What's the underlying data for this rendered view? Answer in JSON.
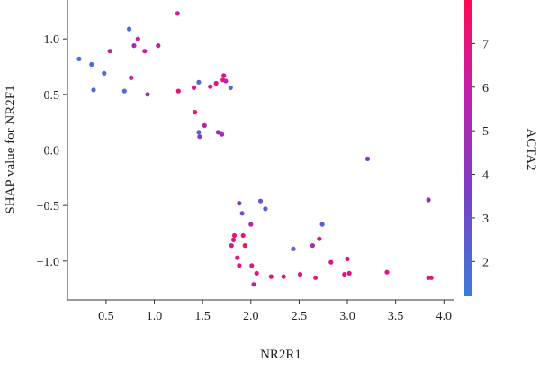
{
  "chart_data": {
    "type": "scatter",
    "xlabel": "NR2R1",
    "ylabel": "SHAP value for NR2F1",
    "colorbar_label": "ACTA2",
    "xlim": [
      0.1,
      4.1
    ],
    "ylim": [
      -1.35,
      1.35
    ],
    "xticks": [
      0.5,
      1.0,
      1.5,
      2.0,
      2.5,
      3.0,
      3.5,
      4.0
    ],
    "xtick_labels": [
      "0.5",
      "1.0",
      "1.5",
      "2.0",
      "2.5",
      "3.0",
      "3.5",
      "4.0"
    ],
    "yticks": [
      1.0,
      0.5,
      0.0,
      -0.5,
      -1.0
    ],
    "ytick_labels": [
      "1.0",
      "0.5",
      "0.0",
      "−0.5",
      "−1.0"
    ],
    "colorbar": {
      "range": [
        1.2,
        8.0
      ],
      "ticks": [
        2,
        3,
        4,
        5,
        6,
        7
      ],
      "tick_labels": [
        "2",
        "3",
        "4",
        "5",
        "6",
        "7"
      ],
      "colors": [
        "#3b7dd8",
        "#7b3fc4",
        "#c420a8",
        "#ff0a52"
      ]
    },
    "points": [
      {
        "x": 0.22,
        "y": 0.82,
        "c": 1.5
      },
      {
        "x": 0.35,
        "y": 0.77,
        "c": 1.8
      },
      {
        "x": 0.37,
        "y": 0.54,
        "c": 1.9
      },
      {
        "x": 0.48,
        "y": 0.69,
        "c": 1.7
      },
      {
        "x": 0.54,
        "y": 0.89,
        "c": 5.5
      },
      {
        "x": 0.69,
        "y": 0.53,
        "c": 1.8
      },
      {
        "x": 0.74,
        "y": 1.09,
        "c": 2.0
      },
      {
        "x": 0.76,
        "y": 0.65,
        "c": 6.0
      },
      {
        "x": 0.79,
        "y": 0.94,
        "c": 5.5
      },
      {
        "x": 0.83,
        "y": 1.0,
        "c": 6.2
      },
      {
        "x": 0.9,
        "y": 0.89,
        "c": 6.0
      },
      {
        "x": 0.93,
        "y": 0.5,
        "c": 4.5
      },
      {
        "x": 1.04,
        "y": 0.94,
        "c": 5.8
      },
      {
        "x": 1.24,
        "y": 1.23,
        "c": 6.2
      },
      {
        "x": 1.25,
        "y": 0.53,
        "c": 7.2
      },
      {
        "x": 1.41,
        "y": 0.56,
        "c": 6.8
      },
      {
        "x": 1.42,
        "y": 0.34,
        "c": 7.3
      },
      {
        "x": 1.46,
        "y": 0.61,
        "c": 2.1
      },
      {
        "x": 1.46,
        "y": 0.16,
        "c": 2.2
      },
      {
        "x": 1.47,
        "y": 0.12,
        "c": 3.8
      },
      {
        "x": 1.52,
        "y": 0.22,
        "c": 5.0
      },
      {
        "x": 1.58,
        "y": 0.57,
        "c": 6.8
      },
      {
        "x": 1.64,
        "y": 0.6,
        "c": 7.0
      },
      {
        "x": 1.66,
        "y": 0.16,
        "c": 4.5
      },
      {
        "x": 1.69,
        "y": 0.15,
        "c": 4.2
      },
      {
        "x": 1.7,
        "y": 0.14,
        "c": 4.8
      },
      {
        "x": 1.71,
        "y": 0.63,
        "c": 7.0
      },
      {
        "x": 1.72,
        "y": 0.67,
        "c": 7.2
      },
      {
        "x": 1.74,
        "y": 0.62,
        "c": 5.5
      },
      {
        "x": 1.79,
        "y": 0.56,
        "c": 2.2
      },
      {
        "x": 1.8,
        "y": -0.86,
        "c": 6.3
      },
      {
        "x": 1.82,
        "y": -0.81,
        "c": 7.0
      },
      {
        "x": 1.83,
        "y": -0.77,
        "c": 7.3
      },
      {
        "x": 1.86,
        "y": -0.97,
        "c": 7.0
      },
      {
        "x": 1.88,
        "y": -0.48,
        "c": 3.7
      },
      {
        "x": 1.88,
        "y": -1.04,
        "c": 6.5
      },
      {
        "x": 1.91,
        "y": -0.57,
        "c": 2.8
      },
      {
        "x": 1.92,
        "y": -0.77,
        "c": 7.2
      },
      {
        "x": 1.94,
        "y": -0.86,
        "c": 7.3
      },
      {
        "x": 2.0,
        "y": -0.67,
        "c": 5.5
      },
      {
        "x": 2.01,
        "y": -1.04,
        "c": 6.5
      },
      {
        "x": 2.03,
        "y": -1.21,
        "c": 5.8
      },
      {
        "x": 2.06,
        "y": -1.11,
        "c": 7.0
      },
      {
        "x": 2.1,
        "y": -0.46,
        "c": 2.6
      },
      {
        "x": 2.15,
        "y": -0.53,
        "c": 2.2
      },
      {
        "x": 2.21,
        "y": -1.14,
        "c": 7.1
      },
      {
        "x": 2.34,
        "y": -1.14,
        "c": 7.0
      },
      {
        "x": 2.44,
        "y": -0.89,
        "c": 2.2
      },
      {
        "x": 2.51,
        "y": -1.12,
        "c": 6.8
      },
      {
        "x": 2.64,
        "y": -0.86,
        "c": 4.8
      },
      {
        "x": 2.67,
        "y": -1.15,
        "c": 7.0
      },
      {
        "x": 2.71,
        "y": -0.8,
        "c": 7.2
      },
      {
        "x": 2.74,
        "y": -0.67,
        "c": 2.6
      },
      {
        "x": 2.83,
        "y": -1.01,
        "c": 6.5
      },
      {
        "x": 2.97,
        "y": -1.12,
        "c": 7.0
      },
      {
        "x": 3.0,
        "y": -0.98,
        "c": 6.8
      },
      {
        "x": 3.02,
        "y": -1.11,
        "c": 7.1
      },
      {
        "x": 3.21,
        "y": -0.08,
        "c": 4.3
      },
      {
        "x": 3.41,
        "y": -1.1,
        "c": 7.0
      },
      {
        "x": 3.84,
        "y": -0.45,
        "c": 4.5
      },
      {
        "x": 3.84,
        "y": -1.15,
        "c": 6.8
      },
      {
        "x": 3.87,
        "y": -1.15,
        "c": 7.1
      }
    ]
  }
}
